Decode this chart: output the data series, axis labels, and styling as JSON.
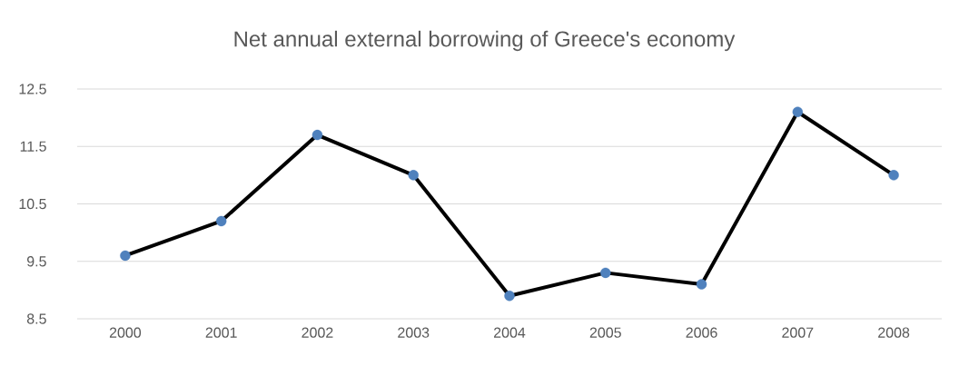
{
  "chart_data": {
    "type": "line",
    "title": "Net annual external borrowing of Greece's economy",
    "categories": [
      "2000",
      "2001",
      "2002",
      "2003",
      "2004",
      "2005",
      "2006",
      "2007",
      "2008"
    ],
    "series": [
      {
        "color": "#000000",
        "colors": [
          "#4f81bd",
          "#4f81bd",
          "#4f81bd",
          "#4f81bd",
          "#4f81bd",
          "#4f81bd",
          "#4f81bd",
          "#4f81bd",
          "#4f81bd"
        ],
        "values": [
          9.6,
          10.2,
          11.7,
          11.0,
          8.9,
          9.3,
          9.1,
          12.1,
          11.0
        ]
      }
    ],
    "ylim": [
      8.5,
      12.5
    ],
    "yticks": [
      8.5,
      9.5,
      10.5,
      11.5,
      12.5
    ],
    "grid": "y",
    "marker": "circle",
    "line_style": "solid"
  }
}
